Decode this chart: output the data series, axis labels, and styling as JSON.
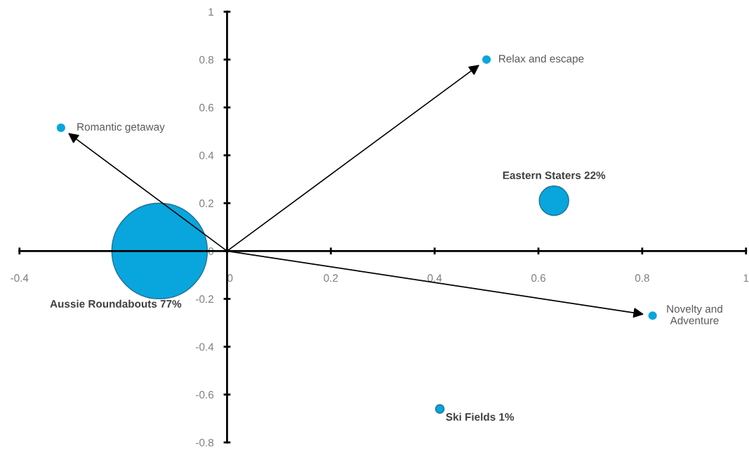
{
  "chart_data": {
    "type": "bubble",
    "series": [
      {
        "name": "Aussie Roundabouts 77%",
        "color": "#08a6dc",
        "x": [
          -0.13
        ],
        "values": [
          0.0
        ],
        "sizes": [
          1
        ]
      },
      {
        "name": "Eastern Staters 22%",
        "color": "#08a6dc",
        "x": [
          0.63
        ],
        "values": [
          0.21
        ],
        "sizes": [
          0.095
        ]
      },
      {
        "name": "Ski Fields 1%",
        "color": "#08a6dc",
        "x": [
          0.41
        ],
        "values": [
          -0.66
        ],
        "sizes": [
          0.008
        ]
      },
      {
        "name": "Relax and escape",
        "type": "scatter",
        "color": "#08a6dc",
        "x": [
          0.5
        ],
        "values": [
          0.8
        ]
      },
      {
        "name": "Romantic getaway",
        "type": "scatter",
        "color": "#08a6dc",
        "x": [
          -0.32
        ],
        "values": [
          0.515
        ]
      },
      {
        "name": "Novelty and\nAdventure",
        "type": "scatter",
        "color": "#08a6dc",
        "x": [
          0.82
        ],
        "values": [
          -0.27
        ]
      }
    ],
    "xlim": [
      -0.4,
      1
    ],
    "xticks": [
      -0.4,
      {
        "value": -0.2,
        "label": null
      },
      0,
      0.2,
      0.4,
      0.6,
      0.8,
      1
    ],
    "ylim": [
      -0.8,
      1
    ],
    "yticks": [
      -0.8,
      -0.6,
      -0.4,
      -0.2,
      0,
      0.2,
      0.4,
      0.6,
      0.8,
      1
    ],
    "grid": false,
    "legend": false,
    "marker": "circle"
  }
}
